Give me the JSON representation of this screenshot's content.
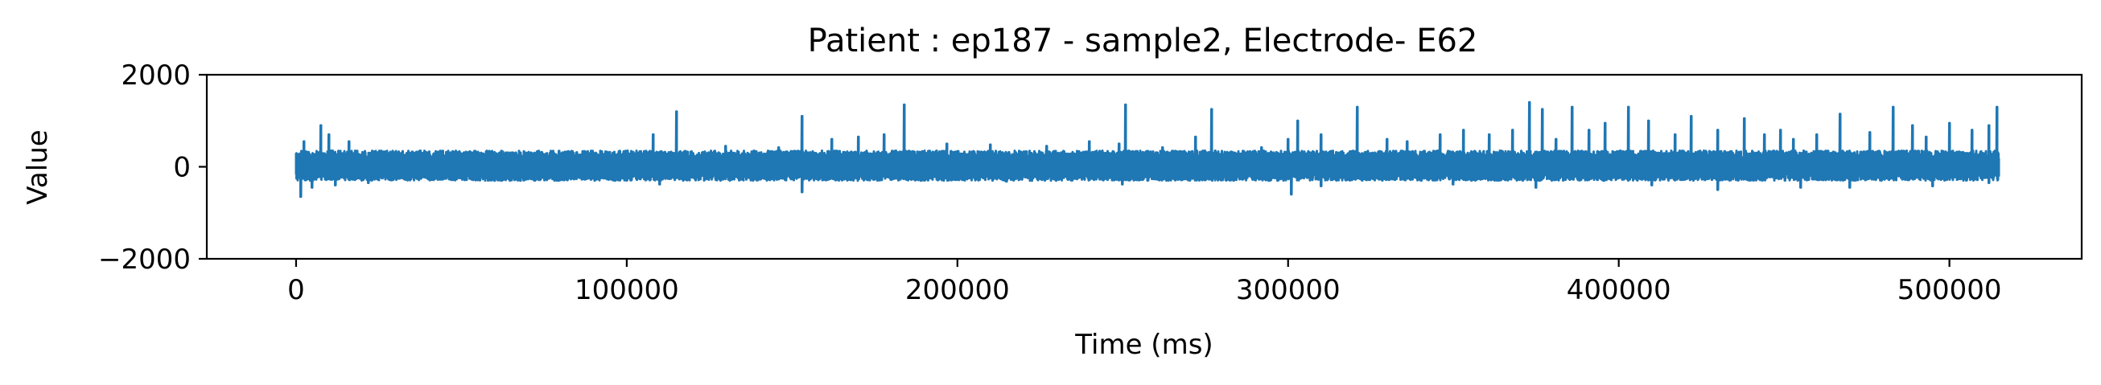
{
  "chart_data": {
    "type": "line",
    "title": "Patient : ep187 - sample2, Electrode- E62",
    "xlabel": "Time (ms)",
    "ylabel": "Value",
    "xlim": [
      -27000,
      540000
    ],
    "ylim": [
      -2000,
      2000
    ],
    "xticks": [
      0,
      100000,
      200000,
      300000,
      400000,
      500000
    ],
    "xtick_labels": [
      "0",
      "100000",
      "200000",
      "300000",
      "400000",
      "500000"
    ],
    "yticks": [
      2000,
      0,
      -2000
    ],
    "ytick_labels": [
      "2000",
      "0",
      "−2000"
    ],
    "grid": false,
    "line_color": "#1f77b4",
    "series": [
      {
        "x_range": [
          0,
          515000
        ],
        "baseline": 0,
        "band": [
          -300,
          350
        ],
        "spikes_up": [
          [
            0,
            300
          ],
          [
            2500,
            550
          ],
          [
            7500,
            900
          ],
          [
            10000,
            700
          ],
          [
            16000,
            550
          ],
          [
            27000,
            330
          ],
          [
            42000,
            280
          ],
          [
            70000,
            300
          ],
          [
            95000,
            320
          ],
          [
            108000,
            700
          ],
          [
            115000,
            1200
          ],
          [
            130000,
            450
          ],
          [
            146000,
            420
          ],
          [
            153000,
            1100
          ],
          [
            162000,
            600
          ],
          [
            170000,
            650
          ],
          [
            178000,
            700
          ],
          [
            184000,
            1350
          ],
          [
            197000,
            500
          ],
          [
            210000,
            480
          ],
          [
            227000,
            450
          ],
          [
            240000,
            550
          ],
          [
            249000,
            500
          ],
          [
            251000,
            1350
          ],
          [
            262000,
            420
          ],
          [
            272000,
            650
          ],
          [
            277000,
            1250
          ],
          [
            292000,
            420
          ],
          [
            300000,
            600
          ],
          [
            303000,
            1000
          ],
          [
            310000,
            700
          ],
          [
            321000,
            1300
          ],
          [
            330000,
            600
          ],
          [
            336000,
            550
          ],
          [
            346000,
            700
          ],
          [
            353000,
            800
          ],
          [
            361000,
            700
          ],
          [
            368000,
            800
          ],
          [
            373000,
            1400
          ],
          [
            377000,
            1250
          ],
          [
            381000,
            600
          ],
          [
            386000,
            1300
          ],
          [
            391000,
            800
          ],
          [
            396000,
            950
          ],
          [
            403000,
            1300
          ],
          [
            409000,
            1000
          ],
          [
            417000,
            700
          ],
          [
            422000,
            1100
          ],
          [
            430000,
            800
          ],
          [
            438000,
            1050
          ],
          [
            444000,
            700
          ],
          [
            449000,
            800
          ],
          [
            453000,
            600
          ],
          [
            460000,
            700
          ],
          [
            467000,
            1150
          ],
          [
            476000,
            750
          ],
          [
            483000,
            1300
          ],
          [
            489000,
            900
          ],
          [
            493000,
            650
          ],
          [
            500000,
            950
          ],
          [
            507000,
            800
          ],
          [
            512000,
            900
          ],
          [
            514500,
            1300
          ]
        ],
        "spikes_down": [
          [
            1500,
            -650
          ],
          [
            5000,
            -450
          ],
          [
            12000,
            -400
          ],
          [
            22000,
            -350
          ],
          [
            60000,
            -300
          ],
          [
            110000,
            -380
          ],
          [
            153000,
            -550
          ],
          [
            215000,
            -320
          ],
          [
            250000,
            -380
          ],
          [
            301000,
            -600
          ],
          [
            310000,
            -420
          ],
          [
            350000,
            -380
          ],
          [
            375000,
            -450
          ],
          [
            410000,
            -400
          ],
          [
            430000,
            -500
          ],
          [
            455000,
            -450
          ],
          [
            470000,
            -450
          ],
          [
            495000,
            -420
          ],
          [
            512000,
            -350
          ]
        ]
      }
    ]
  }
}
